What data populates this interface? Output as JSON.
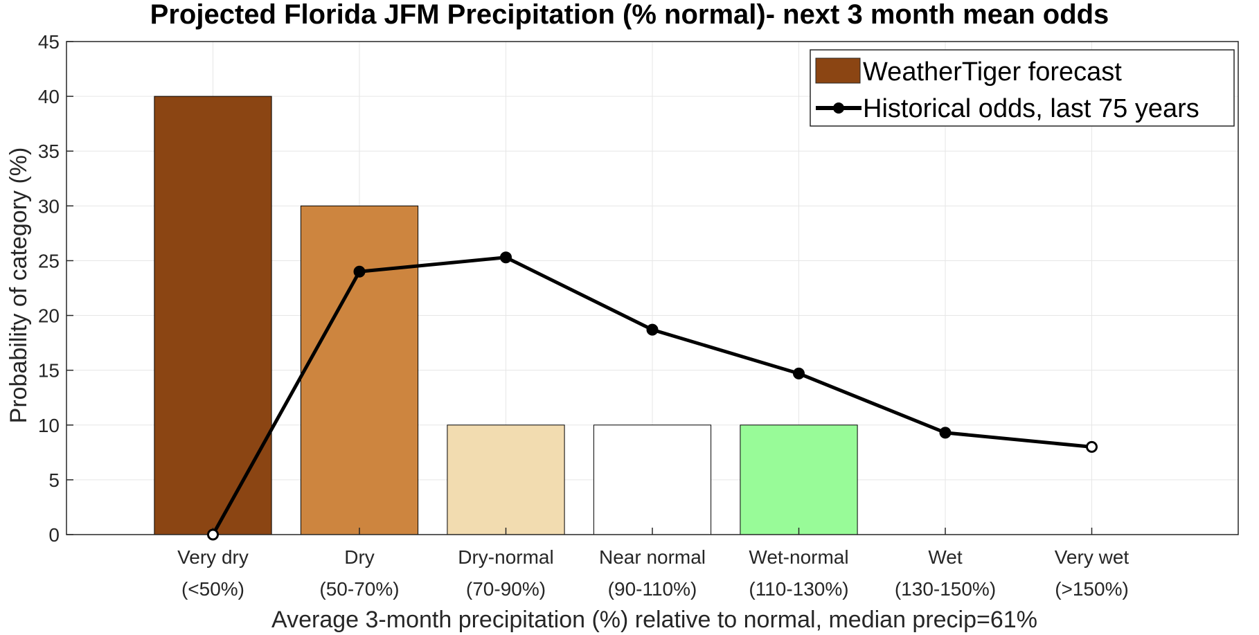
{
  "chart_data": {
    "type": "bar",
    "title": "Projected Florida JFM Precipitation (% normal)- next 3 month mean odds",
    "xlabel": "Average 3-month precipitation (%) relative to normal, median precip=61%",
    "ylabel": "Probability of category (%)",
    "ylim": [
      0,
      45
    ],
    "yticks": [
      0,
      5,
      10,
      15,
      20,
      25,
      30,
      35,
      40,
      45
    ],
    "grid": true,
    "legend_position": "top-right",
    "categories": [
      {
        "name": "Very dry",
        "range": "(<50%)"
      },
      {
        "name": "Dry",
        "range": "(50-70%)"
      },
      {
        "name": "Dry-normal",
        "range": "(70-90%)"
      },
      {
        "name": "Near normal",
        "range": "(90-110%)"
      },
      {
        "name": "Wet-normal",
        "range": "(110-130%)"
      },
      {
        "name": "Wet",
        "range": "(130-150%)"
      },
      {
        "name": "Very wet",
        "range": "(>150%)"
      }
    ],
    "series": [
      {
        "name": "WeatherTiger forecast",
        "kind": "bar",
        "values": [
          40,
          30,
          10,
          10,
          10,
          0,
          0
        ],
        "colors": [
          "#8b4513",
          "#cd853f",
          "#f2dcb0",
          "#ffffff",
          "#98fb98",
          "#ffffff",
          "#ffffff"
        ],
        "legend_color": "#8b4513"
      },
      {
        "name": "Historical odds, last 75 years",
        "kind": "line",
        "values": [
          0,
          24,
          25.3,
          18.7,
          14.7,
          9.3,
          8
        ],
        "color": "#000000",
        "filled_markers": [
          false,
          true,
          true,
          true,
          true,
          true,
          false
        ]
      }
    ]
  }
}
